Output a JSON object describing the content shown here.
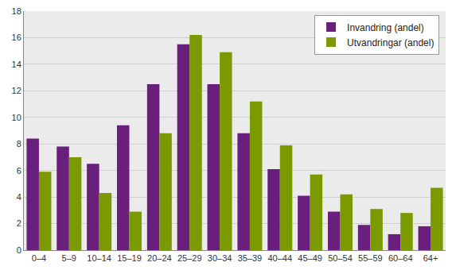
{
  "chart_data": {
    "type": "bar",
    "categories": [
      "0–4",
      "5–9",
      "10–14",
      "15–19",
      "20–24",
      "25–29",
      "30–34",
      "35–39",
      "40–44",
      "45–49",
      "50–54",
      "55–59",
      "60–64",
      "64+"
    ],
    "series": [
      {
        "name": "Invandring (andel)",
        "color": "#6b1f7c",
        "values": [
          8.4,
          7.8,
          6.5,
          9.4,
          12.5,
          15.5,
          12.5,
          8.8,
          6.1,
          4.1,
          2.9,
          1.9,
          1.2,
          1.8
        ]
      },
      {
        "name": "Utvandringar (andel)",
        "color": "#7b9a00",
        "values": [
          5.9,
          7.0,
          4.3,
          2.9,
          8.8,
          16.2,
          14.9,
          11.2,
          7.9,
          5.7,
          4.2,
          3.1,
          2.8,
          4.7
        ]
      }
    ],
    "ylim": [
      0,
      18
    ],
    "yticks": [
      0,
      2,
      4,
      6,
      8,
      10,
      12,
      14,
      16,
      18
    ],
    "grid": true,
    "legend": "top right"
  }
}
